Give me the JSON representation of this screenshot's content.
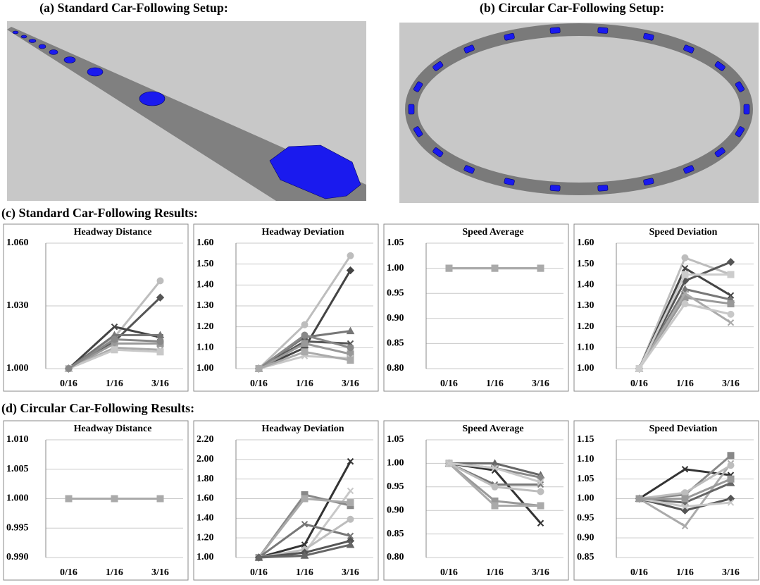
{
  "headings": [
    "(a) Standard Car-Following Setup:",
    "(b) Circular Car-Following Setup:",
    "(c) Standard Car-Following Results:",
    "(d) Circular Car-Following Results:"
  ],
  "chart_data": [
    {
      "type": "line",
      "title": "Headway Distance",
      "categories": [
        "0/16",
        "1/16",
        "3/16"
      ],
      "ylim": [
        1.0,
        1.06
      ],
      "yticks": [
        {
          "value": 1.0,
          "label": "1.000"
        },
        {
          "value": 1.03,
          "label": "1.030"
        },
        {
          "value": 1.06,
          "label": "1.060"
        }
      ],
      "grid": true,
      "series": [
        {
          "color": "#bdbdbd",
          "marker": "circle",
          "values": [
            1,
            1.015,
            1.042
          ]
        },
        {
          "color": "#555555",
          "marker": "diamond",
          "values": [
            1,
            1.013,
            1.034
          ]
        },
        {
          "color": "#444444",
          "marker": "x",
          "values": [
            1,
            1.02,
            1.015
          ]
        },
        {
          "color": "#777777",
          "marker": "triangle",
          "values": [
            1,
            1.016,
            1.016
          ]
        },
        {
          "color": "#999999",
          "marker": "square",
          "values": [
            1,
            1.012,
            1.012
          ]
        },
        {
          "color": "#aaaaaa",
          "marker": "x",
          "values": [
            1,
            1.01,
            1.009
          ]
        },
        {
          "color": "#c8c8c8",
          "marker": "square",
          "values": [
            1,
            1.009,
            1.008
          ]
        },
        {
          "color": "#888888",
          "marker": "circle",
          "values": [
            1,
            1.014,
            1.013
          ]
        }
      ]
    },
    {
      "type": "line",
      "title": "Headway Deviation",
      "categories": [
        "0/16",
        "1/16",
        "3/16"
      ],
      "ylim": [
        1.0,
        1.6
      ],
      "yticks": [
        {
          "value": 1.0,
          "label": "1.00"
        },
        {
          "value": 1.1,
          "label": "1.10"
        },
        {
          "value": 1.2,
          "label": "1.20"
        },
        {
          "value": 1.3,
          "label": "1.30"
        },
        {
          "value": 1.4,
          "label": "1.40"
        },
        {
          "value": 1.5,
          "label": "1.50"
        },
        {
          "value": 1.6,
          "label": "1.60"
        }
      ],
      "grid": true,
      "series": [
        {
          "color": "#bdbdbd",
          "marker": "circle",
          "values": [
            1,
            1.21,
            1.54
          ]
        },
        {
          "color": "#444444",
          "marker": "diamond",
          "values": [
            1,
            1.1,
            1.47
          ]
        },
        {
          "color": "#777777",
          "marker": "triangle",
          "values": [
            1,
            1.15,
            1.18
          ]
        },
        {
          "color": "#555555",
          "marker": "x",
          "values": [
            1,
            1.13,
            1.12
          ]
        },
        {
          "color": "#999999",
          "marker": "square",
          "values": [
            1,
            1.12,
            1.07
          ]
        },
        {
          "color": "#c8c8c8",
          "marker": "x",
          "values": [
            1,
            1.06,
            1.05
          ]
        },
        {
          "color": "#888888",
          "marker": "circle",
          "values": [
            1,
            1.16,
            1.1
          ]
        },
        {
          "color": "#aaaaaa",
          "marker": "square",
          "values": [
            1,
            1.08,
            1.04
          ]
        }
      ]
    },
    {
      "type": "line",
      "title": "Speed Average",
      "categories": [
        "0/16",
        "1/16",
        "3/16"
      ],
      "ylim": [
        0.8,
        1.05
      ],
      "yticks": [
        {
          "value": 0.8,
          "label": "0.80"
        },
        {
          "value": 0.85,
          "label": "0.85"
        },
        {
          "value": 0.9,
          "label": "0.90"
        },
        {
          "value": 0.95,
          "label": "0.95"
        },
        {
          "value": 1.0,
          "label": "1.00"
        },
        {
          "value": 1.05,
          "label": "1.05"
        }
      ],
      "grid": true,
      "series": [
        {
          "color": "#888888",
          "marker": "square",
          "values": [
            1,
            1,
            1
          ]
        },
        {
          "color": "#aaaaaa",
          "marker": "square",
          "values": [
            1,
            1,
            1
          ]
        }
      ]
    },
    {
      "type": "line",
      "title": "Speed Deviation",
      "categories": [
        "0/16",
        "1/16",
        "3/16"
      ],
      "ylim": [
        1.0,
        1.6
      ],
      "yticks": [
        {
          "value": 1.0,
          "label": "1.00"
        },
        {
          "value": 1.1,
          "label": "1.10"
        },
        {
          "value": 1.2,
          "label": "1.20"
        },
        {
          "value": 1.3,
          "label": "1.30"
        },
        {
          "value": 1.4,
          "label": "1.40"
        },
        {
          "value": 1.5,
          "label": "1.50"
        },
        {
          "value": 1.6,
          "label": "1.60"
        }
      ],
      "grid": true,
      "series": [
        {
          "color": "#bdbdbd",
          "marker": "circle",
          "values": [
            1,
            1.53,
            1.45
          ]
        },
        {
          "color": "#444444",
          "marker": "x",
          "values": [
            1,
            1.48,
            1.35
          ]
        },
        {
          "color": "#555555",
          "marker": "diamond",
          "values": [
            1,
            1.42,
            1.51
          ]
        },
        {
          "color": "#777777",
          "marker": "triangle",
          "values": [
            1,
            1.38,
            1.33
          ]
        },
        {
          "color": "#999999",
          "marker": "square",
          "values": [
            1,
            1.34,
            1.31
          ]
        },
        {
          "color": "#aaaaaa",
          "marker": "x",
          "values": [
            1,
            1.36,
            1.22
          ]
        },
        {
          "color": "#c8c8c8",
          "marker": "circle",
          "values": [
            1,
            1.31,
            1.26
          ]
        },
        {
          "color": "#cccccc",
          "marker": "square",
          "values": [
            1,
            1.45,
            1.45
          ]
        }
      ]
    },
    {
      "type": "line",
      "title": "Headway Distance",
      "categories": [
        "0/16",
        "1/16",
        "3/16"
      ],
      "ylim": [
        0.99,
        1.01
      ],
      "yticks": [
        {
          "value": 0.99,
          "label": "0.990"
        },
        {
          "value": 0.995,
          "label": "0.995"
        },
        {
          "value": 1.0,
          "label": "1.000"
        },
        {
          "value": 1.005,
          "label": "1.005"
        },
        {
          "value": 1.01,
          "label": "1.010"
        }
      ],
      "grid": true,
      "series": [
        {
          "color": "#888888",
          "marker": "square",
          "values": [
            1,
            1,
            1
          ]
        },
        {
          "color": "#aaaaaa",
          "marker": "square",
          "values": [
            1,
            1,
            1
          ]
        }
      ]
    },
    {
      "type": "line",
      "title": "Headway Deviation",
      "categories": [
        "0/16",
        "1/16",
        "3/16"
      ],
      "ylim": [
        1.0,
        2.2
      ],
      "yticks": [
        {
          "value": 1.0,
          "label": "1.00"
        },
        {
          "value": 1.2,
          "label": "1.20"
        },
        {
          "value": 1.4,
          "label": "1.40"
        },
        {
          "value": 1.6,
          "label": "1.60"
        },
        {
          "value": 1.8,
          "label": "1.80"
        },
        {
          "value": 2.0,
          "label": "2.00"
        },
        {
          "value": 2.2,
          "label": "2.20"
        }
      ],
      "grid": true,
      "series": [
        {
          "color": "#333333",
          "marker": "x",
          "values": [
            1,
            1.13,
            1.98
          ]
        },
        {
          "color": "#c8c8c8",
          "marker": "x",
          "values": [
            1,
            1.05,
            1.68
          ]
        },
        {
          "color": "#888888",
          "marker": "square",
          "values": [
            1,
            1.64,
            1.53
          ]
        },
        {
          "color": "#aaaaaa",
          "marker": "square",
          "values": [
            1,
            1.6,
            1.56
          ]
        },
        {
          "color": "#777777",
          "marker": "x",
          "values": [
            1,
            1.34,
            1.22
          ]
        },
        {
          "color": "#bdbdbd",
          "marker": "circle",
          "values": [
            1,
            1.08,
            1.39
          ]
        },
        {
          "color": "#555555",
          "marker": "diamond",
          "values": [
            1,
            1.05,
            1.17
          ]
        },
        {
          "color": "#666666",
          "marker": "triangle",
          "values": [
            1,
            1.02,
            1.13
          ]
        }
      ]
    },
    {
      "type": "line",
      "title": "Speed Average",
      "categories": [
        "0/16",
        "1/16",
        "3/16"
      ],
      "ylim": [
        0.8,
        1.05
      ],
      "yticks": [
        {
          "value": 0.8,
          "label": "0.80"
        },
        {
          "value": 0.85,
          "label": "0.85"
        },
        {
          "value": 0.9,
          "label": "0.90"
        },
        {
          "value": 0.95,
          "label": "0.95"
        },
        {
          "value": 1.0,
          "label": "1.00"
        },
        {
          "value": 1.05,
          "label": "1.05"
        }
      ],
      "grid": true,
      "series": [
        {
          "color": "#666666",
          "marker": "triangle",
          "values": [
            1,
            1.0,
            0.975
          ]
        },
        {
          "color": "#888888",
          "marker": "diamond",
          "values": [
            1,
            0.99,
            0.97
          ]
        },
        {
          "color": "#333333",
          "marker": "x",
          "values": [
            1,
            0.985,
            0.873
          ]
        },
        {
          "color": "#777777",
          "marker": "x",
          "values": [
            1,
            0.955,
            0.955
          ]
        },
        {
          "color": "#999999",
          "marker": "square",
          "values": [
            1,
            0.92,
            0.91
          ]
        },
        {
          "color": "#aaaaaa",
          "marker": "square",
          "values": [
            1,
            0.91,
            0.91
          ]
        },
        {
          "color": "#bdbdbd",
          "marker": "circle",
          "values": [
            1,
            0.95,
            0.94
          ]
        },
        {
          "color": "#c8c8c8",
          "marker": "x",
          "values": [
            1,
            0.99,
            0.96
          ]
        }
      ]
    },
    {
      "type": "line",
      "title": "Speed Deviation",
      "categories": [
        "0/16",
        "1/16",
        "3/16"
      ],
      "ylim": [
        0.85,
        1.15
      ],
      "yticks": [
        {
          "value": 0.85,
          "label": "0.85"
        },
        {
          "value": 0.9,
          "label": "0.90"
        },
        {
          "value": 0.95,
          "label": "0.95"
        },
        {
          "value": 1.0,
          "label": "1.00"
        },
        {
          "value": 1.05,
          "label": "1.05"
        },
        {
          "value": 1.1,
          "label": "1.10"
        },
        {
          "value": 1.15,
          "label": "1.15"
        }
      ],
      "grid": true,
      "series": [
        {
          "color": "#333333",
          "marker": "x",
          "values": [
            1,
            1.075,
            1.06
          ]
        },
        {
          "color": "#aaaaaa",
          "marker": "x",
          "values": [
            1,
            0.93,
            1.09
          ]
        },
        {
          "color": "#555555",
          "marker": "diamond",
          "values": [
            1,
            0.97,
            1.0
          ]
        },
        {
          "color": "#888888",
          "marker": "square",
          "values": [
            1,
            1.01,
            1.11
          ]
        },
        {
          "color": "#bdbdbd",
          "marker": "circle",
          "values": [
            1,
            1.015,
            1.085
          ]
        },
        {
          "color": "#666666",
          "marker": "triangle",
          "values": [
            1,
            0.99,
            1.04
          ]
        },
        {
          "color": "#c8c8c8",
          "marker": "x",
          "values": [
            1,
            0.98,
            0.99
          ]
        },
        {
          "color": "#999999",
          "marker": "square",
          "values": [
            1,
            1.0,
            1.05
          ]
        }
      ]
    }
  ]
}
